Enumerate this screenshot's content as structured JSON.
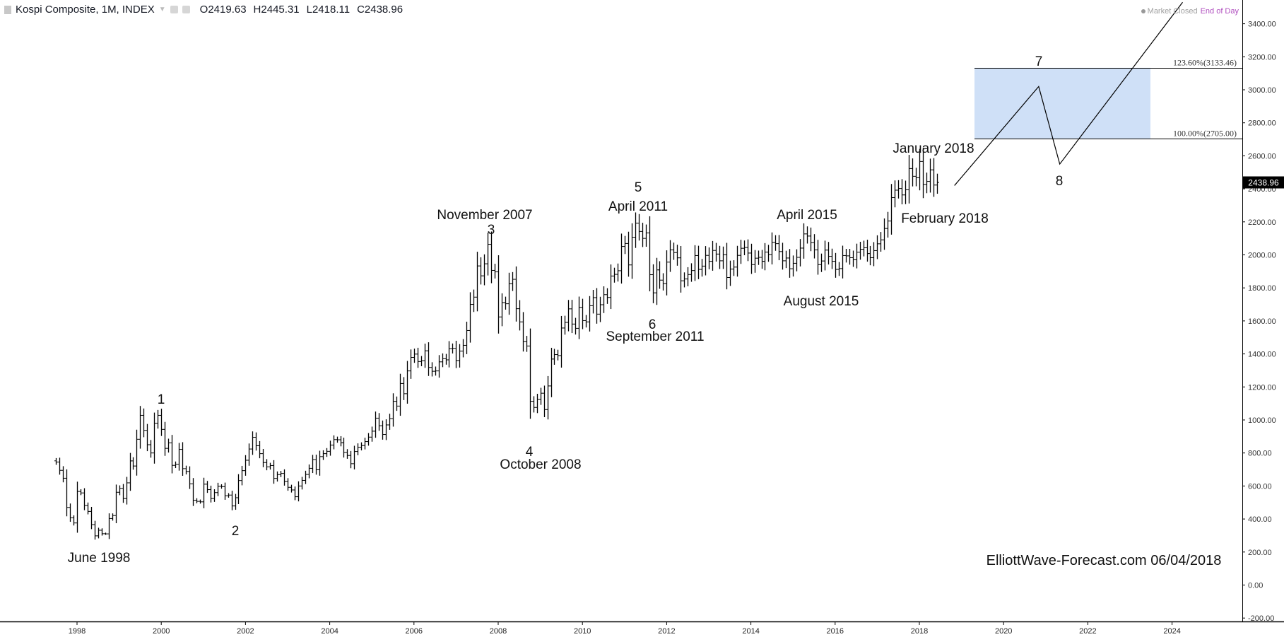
{
  "header": {
    "symbol": "Kospi Composite, 1M, INDEX",
    "open": "O2419.63",
    "high": "H2445.31",
    "low": "L2418.11",
    "close": "C2438.96",
    "market_status": "Market Closed",
    "data_mode": "End of Day"
  },
  "watermark": "ElliottWave-Forecast.com 06/04/2018",
  "colors": {
    "bars": "#000000",
    "target_box": "#cfe0f7",
    "price_label_bg": "#000000",
    "end_of_day": "#b04fbf"
  },
  "chart_data": {
    "type": "ohlc-bar",
    "interval": "1M",
    "start_month": "1997-07",
    "close": [
      745,
      695,
      647,
      470,
      407,
      376,
      567,
      558,
      482,
      446,
      366,
      298,
      332,
      311,
      310,
      403,
      421,
      562,
      586,
      524,
      619,
      752,
      721,
      883,
      1028,
      937,
      850,
      800,
      980,
      1028,
      943,
      828,
      861,
      725,
      732,
      822,
      705,
      688,
      613,
      514,
      507,
      504,
      611,
      578,
      524,
      560,
      598,
      596,
      541,
      545,
      479,
      529,
      633,
      693,
      756,
      824,
      895,
      844,
      796,
      742,
      716,
      724,
      646,
      669,
      676,
      627,
      592,
      576,
      535,
      600,
      634,
      670,
      707,
      760,
      698,
      778,
      796,
      810,
      848,
      881,
      880,
      862,
      803,
      785,
      735,
      809,
      835,
      845,
      869,
      896,
      932,
      1011,
      965,
      912,
      970,
      1008,
      1113,
      1084,
      1221,
      1159,
      1297,
      1379,
      1399,
      1354,
      1359,
      1419,
      1318,
      1295,
      1297,
      1352,
      1371,
      1364,
      1432,
      1434,
      1360,
      1417,
      1452,
      1542,
      1700,
      1744,
      1933,
      1873,
      1946,
      2064,
      1906,
      1897,
      1624,
      1711,
      1704,
      1825,
      1852,
      1674,
      1594,
      1474,
      1448,
      1113,
      1076,
      1124,
      1162,
      1063,
      1206,
      1369,
      1396,
      1390,
      1557,
      1591,
      1673,
      1581,
      1555,
      1682,
      1602,
      1594,
      1692,
      1741,
      1641,
      1698,
      1759,
      1742,
      1872,
      1882,
      1904,
      2051,
      2069,
      1939,
      2107,
      2192,
      2142,
      2100,
      2133,
      1880,
      1770,
      1909,
      1847,
      1826,
      1956,
      2030,
      2014,
      1982,
      1843,
      1854,
      1881,
      1905,
      1996,
      1912,
      1932,
      1997,
      1961,
      2027,
      2005,
      1964,
      2001,
      1863,
      1914,
      1926,
      1997,
      2040,
      2045,
      2011,
      1941,
      1980,
      1985,
      1961,
      2017,
      2002,
      2076,
      2068,
      2020,
      1964,
      1981,
      1916,
      1949,
      1985,
      2041,
      2127,
      2114,
      2074,
      2030,
      1941,
      1963,
      2029,
      1991,
      1961,
      1912,
      1917,
      1996,
      1994,
      1983,
      1970,
      2016,
      2034,
      2043,
      2008,
      1983,
      2026,
      2067,
      2091,
      2160,
      2205,
      2347,
      2392,
      2402,
      2363,
      2394,
      2523,
      2476,
      2467,
      2566,
      2427,
      2445,
      2515,
      2423,
      2438.96
    ],
    "last_price": "2438.96",
    "y_axis": {
      "min": -200,
      "max": 3400,
      "step": 200,
      "position": "right",
      "tick_labels": [
        "3400.00",
        "3200.00",
        "3000.00",
        "2800.00",
        "2600.00",
        "2400.00",
        "2200.00",
        "2000.00",
        "1800.00",
        "1600.00",
        "1400.00",
        "1200.00",
        "1000.00",
        "800.00",
        "600.00",
        "400.00",
        "200.00",
        "0.00",
        "-200.00"
      ]
    },
    "x_axis": {
      "tick_labels": [
        "1998",
        "2000",
        "2002",
        "2004",
        "2006",
        "2008",
        "2010",
        "2012",
        "2014",
        "2016",
        "2018",
        "2020",
        "2022",
        "2024"
      ]
    },
    "fib_levels": [
      {
        "label": "123.60%(3133.46)",
        "value": 3133.46
      },
      {
        "label": "100.00%(2705.00)",
        "value": 2705.0
      }
    ],
    "annotations": [
      {
        "id": "june-1998",
        "text": "June 1998"
      },
      {
        "id": "wave-1",
        "text": "1"
      },
      {
        "id": "wave-2",
        "text": "2"
      },
      {
        "id": "nov-2007",
        "text": "November 2007"
      },
      {
        "id": "wave-3",
        "text": "3"
      },
      {
        "id": "wave-4",
        "text": "4"
      },
      {
        "id": "oct-2008",
        "text": "October 2008"
      },
      {
        "id": "wave-5",
        "text": "5"
      },
      {
        "id": "apr-2011",
        "text": "April 2011"
      },
      {
        "id": "wave-6",
        "text": "6"
      },
      {
        "id": "sep-2011",
        "text": "September 2011"
      },
      {
        "id": "apr-2015",
        "text": "April 2015"
      },
      {
        "id": "aug-2015",
        "text": "August 2015"
      },
      {
        "id": "jan-2018",
        "text": "January 2018"
      },
      {
        "id": "feb-2018",
        "text": "February 2018"
      },
      {
        "id": "wave-7",
        "text": "7"
      },
      {
        "id": "wave-8",
        "text": "8"
      }
    ],
    "projection": [
      {
        "date": "2018-11",
        "value": 2420
      },
      {
        "date": "2020-11",
        "value": 3020
      },
      {
        "date": "2021-05",
        "value": 2550
      },
      {
        "date": "2024-04",
        "value": 3530
      }
    ]
  }
}
